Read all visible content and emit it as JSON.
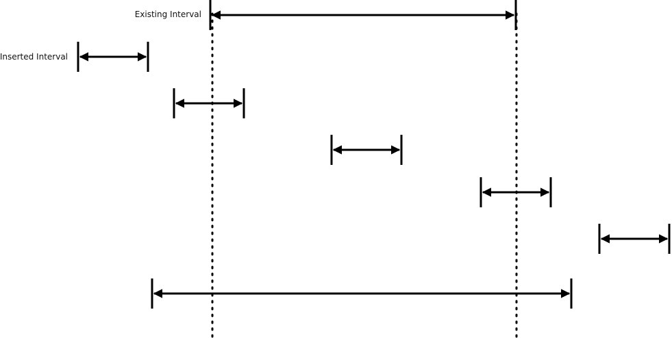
{
  "labels": {
    "existing": "Existing Interval",
    "inserted": "Inserted Interval"
  },
  "colors": {
    "stroke": "#000000",
    "text": "#111111"
  }
}
